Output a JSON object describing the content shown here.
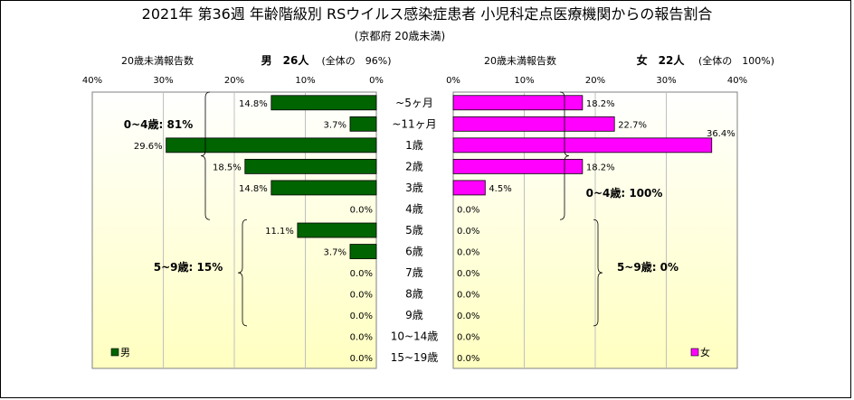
{
  "chart_data": {
    "type": "bar",
    "orientation": "horizontal-population-pyramid",
    "title": "2021年 第36週 年齢階級別 RSウイルス感染症患者 小児科定点医療機関からの報告割合",
    "subtitle": "(京都府 20歳未満)",
    "categories": [
      "~5ヶ月",
      "~11ヶ月",
      "1歳",
      "2歳",
      "3歳",
      "4歳",
      "5歳",
      "6歳",
      "7歳",
      "8歳",
      "9歳",
      "10~14歳",
      "15~19歳"
    ],
    "xlim": [
      0,
      40
    ],
    "x_ticks": [
      "40%",
      "30%",
      "20%",
      "10%",
      "0%",
      "0%",
      "10%",
      "20%",
      "30%",
      "40%"
    ],
    "grid": "vertical",
    "series": [
      {
        "name": "男",
        "side": "left",
        "header_label": "20歳未満報告数",
        "header_main": "男　26人",
        "header_note": "(全体の　96%)",
        "color": "#006400",
        "values": [
          14.8,
          3.7,
          29.6,
          18.5,
          14.8,
          0.0,
          11.1,
          3.7,
          0.0,
          0.0,
          0.0,
          0.0,
          0.0
        ],
        "labels": [
          "14.8%",
          "3.7%",
          "29.6%",
          "18.5%",
          "14.8%",
          "0.0%",
          "11.1%",
          "3.7%",
          "0.0%",
          "0.0%",
          "0.0%",
          "0.0%",
          "0.0%"
        ],
        "group_labels": [
          "0~4歳: 81%",
          "5~9歳: 15%"
        ],
        "legend": "男"
      },
      {
        "name": "女",
        "side": "right",
        "header_label": "20歳未満報告数",
        "header_main": "女　22人",
        "header_note": "(全体の　100%)",
        "color": "#FF00FF",
        "values": [
          18.2,
          22.7,
          36.4,
          18.2,
          4.5,
          0.0,
          0.0,
          0.0,
          0.0,
          0.0,
          0.0,
          0.0,
          0.0
        ],
        "labels": [
          "18.2%",
          "22.7%",
          "36.4%",
          "18.2%",
          "4.5%",
          "0.0%",
          "0.0%",
          "0.0%",
          "0.0%",
          "0.0%",
          "0.0%",
          "0.0%",
          "0.0%"
        ],
        "group_labels": [
          "0~4歳: 100%",
          "5~9歳: 0%"
        ],
        "legend": "女"
      }
    ],
    "colors": {
      "plot_background_top": "#FFFFFF",
      "plot_background_bottom": "#FFFFC0",
      "grid": "#C0C0C0"
    }
  }
}
